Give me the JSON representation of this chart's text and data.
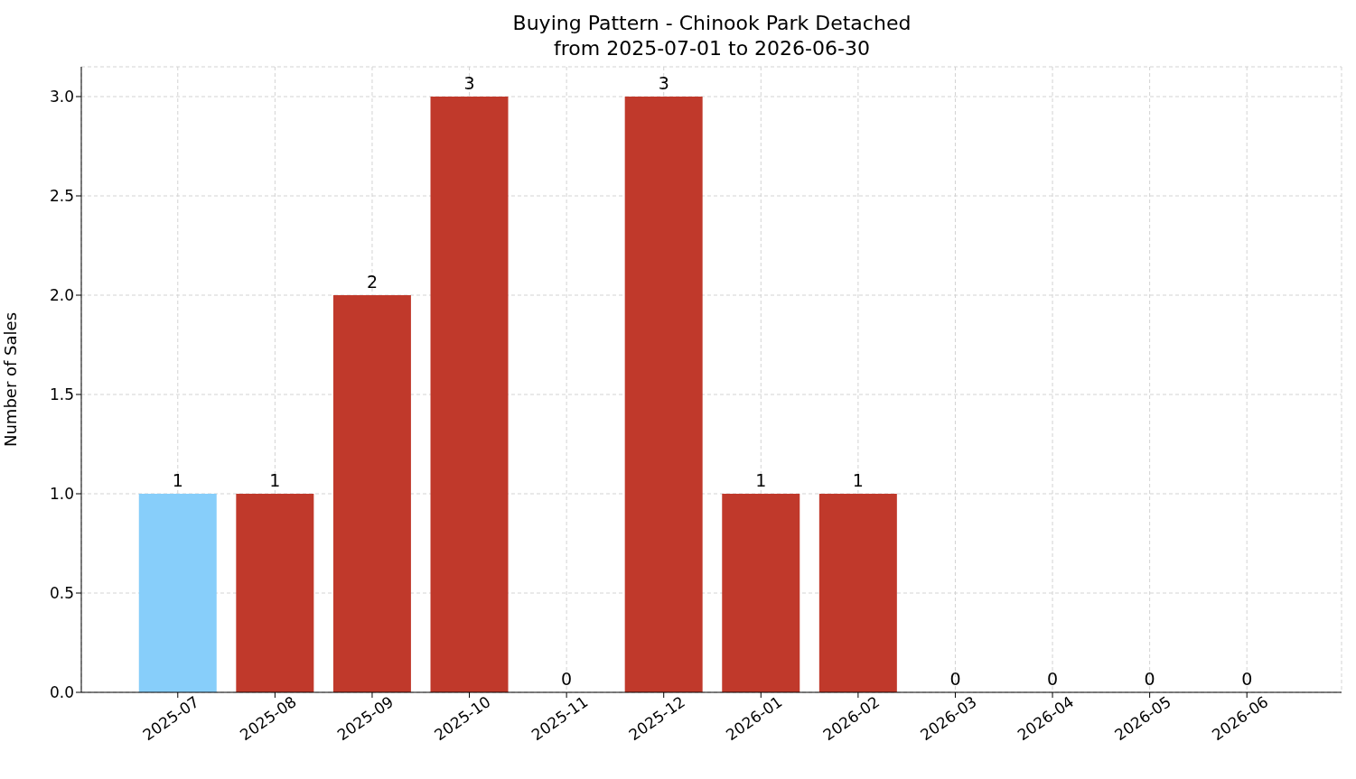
{
  "chart_data": {
    "type": "bar",
    "title": "Buying Pattern - Chinook Park Detached",
    "subtitle": "from 2025-07-01 to 2026-06-30",
    "ylabel": "Number of Sales",
    "categories": [
      "2025-07",
      "2025-08",
      "2025-09",
      "2025-10",
      "2025-11",
      "2025-12",
      "2026-01",
      "2026-02",
      "2026-03",
      "2026-04",
      "2026-05",
      "2026-06"
    ],
    "values": [
      1,
      1,
      2,
      3,
      0,
      3,
      1,
      1,
      0,
      0,
      0,
      0
    ],
    "colors": [
      "#87cefa",
      "#c0392b",
      "#c0392b",
      "#c0392b",
      "#c0392b",
      "#c0392b",
      "#c0392b",
      "#c0392b",
      "#c0392b",
      "#c0392b",
      "#c0392b",
      "#c0392b"
    ],
    "ylim": [
      0,
      3.15
    ],
    "yticks": [
      {
        "value": 0,
        "label": "0.0"
      },
      0.5,
      {
        "value": 1,
        "label": "1.0"
      },
      1.5,
      {
        "value": 2,
        "label": "2.0"
      },
      2.5,
      {
        "value": 3,
        "label": "3.0"
      }
    ],
    "grid": true,
    "data_labels": true
  }
}
